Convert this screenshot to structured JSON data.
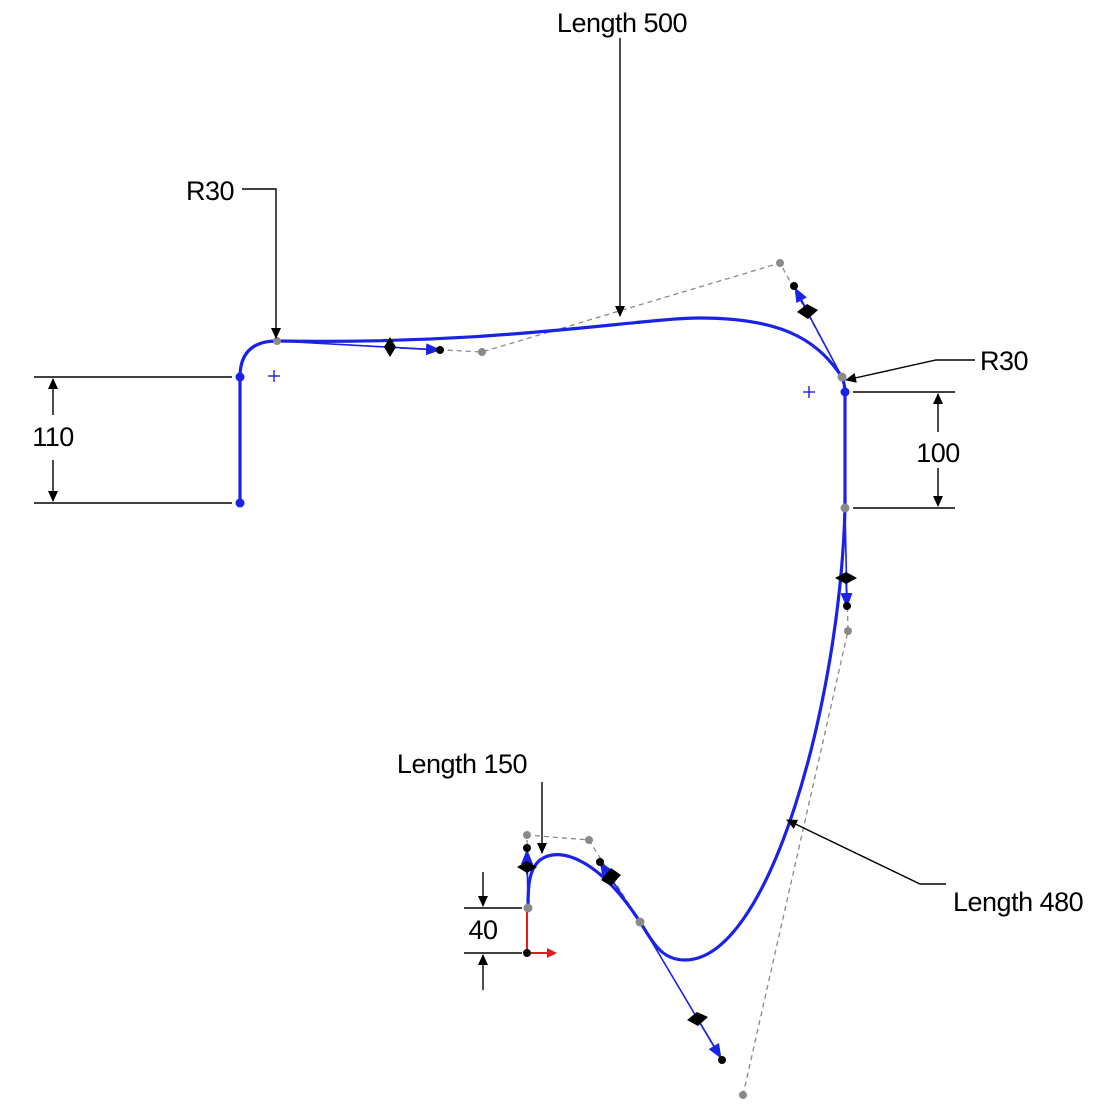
{
  "dimensions": {
    "length_top": "Length 500",
    "radius_left": "R30",
    "radius_right": "R30",
    "height_left": "110",
    "height_right": "100",
    "length_bottom_right": "Length 480",
    "length_bottom_left": "Length 150",
    "height_bottom": "40"
  },
  "colors": {
    "sketch_curve": "#1a22e6",
    "control_polygon": "#8a8a8a",
    "dimension": "#000000",
    "origin_x_axis": "#e31b1b"
  },
  "icons": [
    "origin-icon",
    "arc-center-icon",
    "tangent-handle-icon"
  ]
}
